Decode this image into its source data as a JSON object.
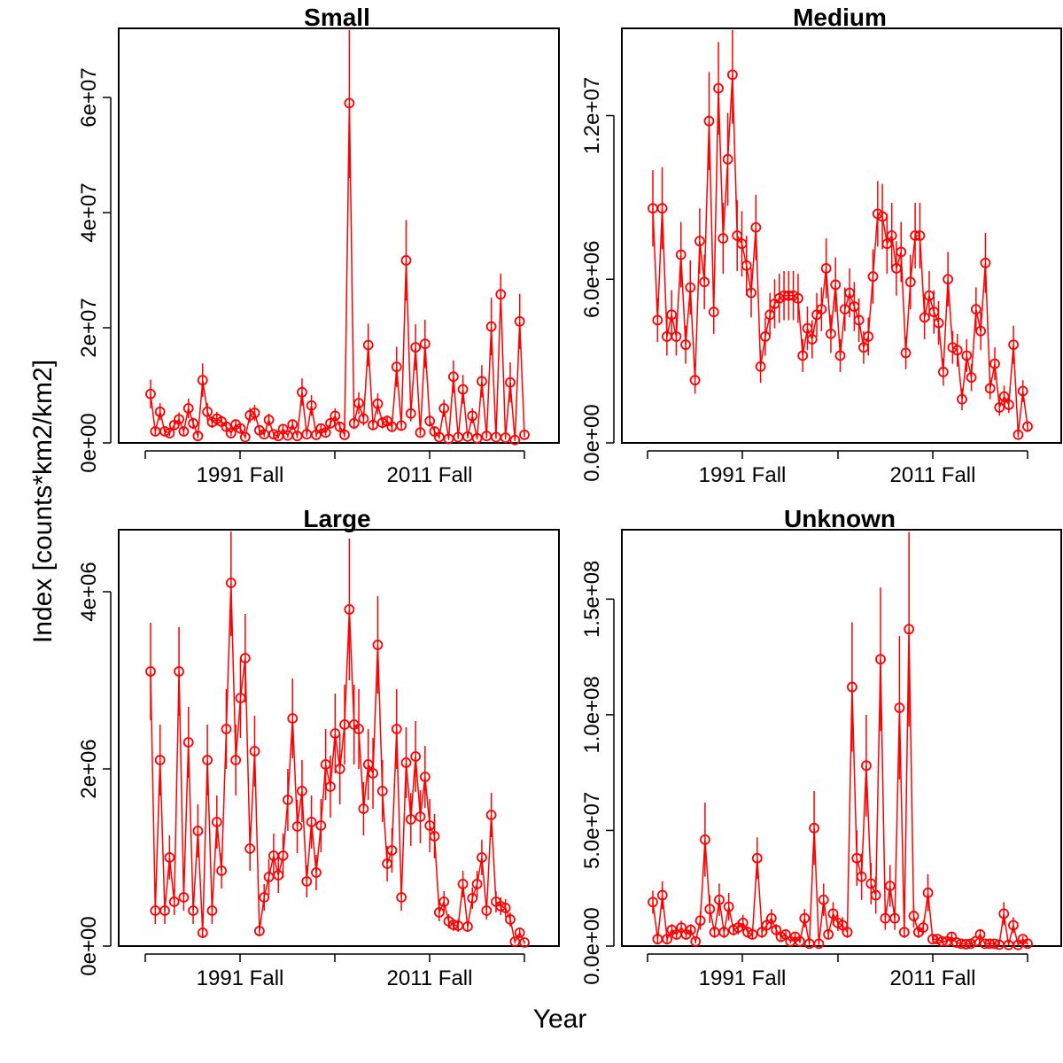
{
  "figure": {
    "ylabel": "Index [counts*km2/km2]",
    "xlabel": "Year",
    "series_color": "#ff0000",
    "axis_color": "#000000"
  },
  "chart_data": [
    {
      "type": "scatter",
      "title": "Small",
      "x_ticks": [
        "1991 Fall",
        "2011 Fall"
      ],
      "y_ticks": [
        "0e+00",
        "2e+07",
        "4e+07",
        "6e+07"
      ],
      "y_tick_values": [
        0,
        20000000,
        40000000,
        60000000
      ],
      "ylim": [
        0,
        72000000
      ],
      "values": [
        8500000,
        2000000,
        5400000,
        2000000,
        1700000,
        3100000,
        4100000,
        2000000,
        6000000,
        3400000,
        1200000,
        10900000,
        5400000,
        3600000,
        4200000,
        3700000,
        2800000,
        1700000,
        3200000,
        2500000,
        1000000,
        4800000,
        5200000,
        2200000,
        1500000,
        4000000,
        1500000,
        1200000,
        2400000,
        1300000,
        3200000,
        1200000,
        8800000,
        1500000,
        6500000,
        1400000,
        2500000,
        1800000,
        3400000,
        4700000,
        2800000,
        1400000,
        59000000,
        3400000,
        6900000,
        4200000,
        17000000,
        3100000,
        6800000,
        3500000,
        3800000,
        2800000,
        13200000,
        3000000,
        31700000,
        5100000,
        16600000,
        1800000,
        17200000,
        3800000,
        2000000,
        1000000,
        6000000,
        700000,
        11500000,
        1000000,
        9300000,
        1100000,
        4700000,
        800000,
        10700000,
        1200000,
        20200000,
        1000000,
        25800000,
        900000,
        10500000,
        500000,
        21100000,
        1400000
      ],
      "errors": [
        2500000,
        600000,
        1500000,
        600000,
        500000,
        900000,
        1200000,
        600000,
        1700000,
        1000000,
        400000,
        2900000,
        1500000,
        1000000,
        1200000,
        1000000,
        800000,
        500000,
        900000,
        700000,
        300000,
        1300000,
        1400000,
        600000,
        400000,
        1100000,
        400000,
        400000,
        700000,
        400000,
        900000,
        400000,
        2400000,
        400000,
        1800000,
        400000,
        700000,
        500000,
        900000,
        1300000,
        800000,
        400000,
        13000000,
        1000000,
        1900000,
        1200000,
        3700000,
        900000,
        1800000,
        1000000,
        1000000,
        800000,
        3500000,
        900000,
        7000000,
        1400000,
        4000000,
        500000,
        4200000,
        1000000,
        600000,
        300000,
        1500000,
        200000,
        2800000,
        300000,
        2500000,
        300000,
        1300000,
        200000,
        2800000,
        400000,
        5000000,
        300000,
        3600000,
        300000,
        3500000,
        200000,
        4800000,
        400000
      ]
    },
    {
      "type": "scatter",
      "title": "Medium",
      "x_ticks": [
        "1991 Fall",
        "2011 Fall"
      ],
      "y_ticks": [
        "0.0e+00",
        "6.0e+06",
        "1.2e+07"
      ],
      "y_tick_values": [
        0,
        6000000,
        12000000
      ],
      "ylim": [
        0,
        15200000
      ],
      "values": [
        8600000,
        4500000,
        8600000,
        3900000,
        4700000,
        3900000,
        6900000,
        3600000,
        5700000,
        2300000,
        7400000,
        5900000,
        11800000,
        4800000,
        13000000,
        7500000,
        10400000,
        13500000,
        7600000,
        7300000,
        6500000,
        5500000,
        7900000,
        2800000,
        3900000,
        4700000,
        5100000,
        5300000,
        5400000,
        5400000,
        5400000,
        5300000,
        3200000,
        4200000,
        3800000,
        4700000,
        4900000,
        6400000,
        4000000,
        5800000,
        3200000,
        4900000,
        5500000,
        5000000,
        4500000,
        3500000,
        3900000,
        6100000,
        8400000,
        8300000,
        7300000,
        7600000,
        6400000,
        7000000,
        3300000,
        5900000,
        7600000,
        7600000,
        4600000,
        5400000,
        4800000,
        4400000,
        2600000,
        6000000,
        3500000,
        3400000,
        1600000,
        3200000,
        2400000,
        4900000,
        4100000,
        6600000,
        2000000,
        2900000,
        1300000,
        1700000,
        1400000,
        3600000,
        300000,
        1900000,
        600000
      ],
      "errors": [
        1400000,
        800000,
        1500000,
        700000,
        900000,
        700000,
        1200000,
        700000,
        1000000,
        500000,
        1200000,
        1000000,
        1800000,
        800000,
        1700000,
        1300000,
        1700000,
        1800000,
        1300000,
        1200000,
        1100000,
        900000,
        1200000,
        600000,
        700000,
        800000,
        900000,
        900000,
        900000,
        900000,
        900000,
        900000,
        600000,
        800000,
        700000,
        800000,
        800000,
        1100000,
        700000,
        1000000,
        600000,
        800000,
        900000,
        900000,
        800000,
        600000,
        700000,
        1000000,
        1200000,
        1200000,
        1100000,
        1200000,
        1000000,
        1100000,
        600000,
        1000000,
        1200000,
        1200000,
        800000,
        900000,
        800000,
        800000,
        500000,
        1000000,
        600000,
        600000,
        400000,
        600000,
        500000,
        800000,
        700000,
        1100000,
        400000,
        600000,
        300000,
        400000,
        300000,
        700000,
        100000,
        400000,
        200000
      ]
    },
    {
      "type": "scatter",
      "title": "Large",
      "x_ticks": [
        "1991 Fall",
        "2011 Fall"
      ],
      "y_ticks": [
        "0e+00",
        "2e+06",
        "4e+06"
      ],
      "y_tick_values": [
        0,
        2000000,
        4000000
      ],
      "ylim": [
        0,
        4700000
      ],
      "values": [
        3100000,
        400000,
        2100000,
        400000,
        1000000,
        500000,
        3100000,
        550000,
        2300000,
        400000,
        1300000,
        150000,
        2100000,
        400000,
        1400000,
        850000,
        2450000,
        4100000,
        2100000,
        2800000,
        3250000,
        1100000,
        2200000,
        170000,
        550000,
        780000,
        1020000,
        800000,
        1020000,
        1650000,
        2570000,
        1350000,
        1750000,
        730000,
        1400000,
        830000,
        1360000,
        2050000,
        1800000,
        2400000,
        2000000,
        2500000,
        3800000,
        2500000,
        2450000,
        1550000,
        2050000,
        1950000,
        3400000,
        1750000,
        930000,
        1080000,
        2450000,
        550000,
        2070000,
        1430000,
        2140000,
        1460000,
        1910000,
        1360000,
        1240000,
        380000,
        500000,
        280000,
        240000,
        230000,
        700000,
        220000,
        540000,
        700000,
        1000000,
        400000,
        1480000,
        500000,
        450000,
        430000,
        300000,
        50000,
        150000,
        40000
      ],
      "errors": [
        550000,
        150000,
        400000,
        150000,
        250000,
        150000,
        500000,
        150000,
        400000,
        150000,
        300000,
        60000,
        400000,
        150000,
        300000,
        200000,
        450000,
        600000,
        400000,
        450000,
        500000,
        250000,
        400000,
        60000,
        150000,
        200000,
        250000,
        200000,
        250000,
        350000,
        450000,
        300000,
        350000,
        180000,
        300000,
        200000,
        300000,
        400000,
        350000,
        450000,
        400000,
        450000,
        800000,
        450000,
        450000,
        300000,
        400000,
        400000,
        550000,
        350000,
        200000,
        250000,
        450000,
        150000,
        400000,
        300000,
        400000,
        300000,
        350000,
        300000,
        250000,
        100000,
        120000,
        80000,
        70000,
        70000,
        150000,
        60000,
        120000,
        150000,
        200000,
        100000,
        250000,
        120000,
        100000,
        100000,
        80000,
        20000,
        40000,
        15000
      ]
    },
    {
      "type": "scatter",
      "title": "Unknown",
      "x_ticks": [
        "1991 Fall",
        "2011 Fall"
      ],
      "y_ticks": [
        "0.0e+00",
        "5.0e+07",
        "1.0e+08",
        "1.5e+08"
      ],
      "y_tick_values": [
        0,
        50000000,
        100000000,
        150000000
      ],
      "ylim": [
        0,
        180000000
      ],
      "values": [
        19000000,
        3000000,
        22000000,
        3000000,
        7000000,
        5000000,
        8000000,
        5000000,
        7000000,
        2000000,
        11000000,
        46000000,
        16000000,
        6000000,
        20000000,
        6000000,
        17000000,
        7000000,
        8000000,
        10000000,
        6000000,
        5000000,
        38000000,
        6000000,
        9000000,
        12000000,
        7000000,
        4000000,
        5000000,
        2000000,
        4000000,
        2000000,
        12000000,
        1000000,
        51000000,
        1000000,
        20000000,
        5000000,
        14000000,
        10000000,
        9000000,
        6000000,
        112000000,
        38000000,
        30000000,
        78000000,
        27000000,
        22000000,
        124000000,
        12000000,
        26000000,
        12000000,
        103000000,
        6000000,
        137000000,
        13000000,
        6000000,
        8000000,
        23000000,
        3000000,
        3000000,
        2000000,
        2000000,
        4000000,
        1500000,
        1000000,
        800000,
        1000000,
        2000000,
        5000000,
        1000000,
        1000000,
        1000000,
        600000,
        14000000,
        500000,
        9000000,
        500000,
        3000000,
        1000000
      ],
      "errors": [
        5000000,
        1500000,
        6000000,
        1500000,
        2500000,
        2000000,
        3000000,
        2000000,
        2500000,
        800000,
        4000000,
        16000000,
        6000000,
        2500000,
        7000000,
        2500000,
        6000000,
        2500000,
        3000000,
        3500000,
        2500000,
        2000000,
        9000000,
        2500000,
        3500000,
        4000000,
        2500000,
        1500000,
        2000000,
        800000,
        1500000,
        800000,
        4000000,
        500000,
        16000000,
        500000,
        7000000,
        2000000,
        5000000,
        3500000,
        3500000,
        2500000,
        28000000,
        12000000,
        10000000,
        22000000,
        9000000,
        8000000,
        31000000,
        5000000,
        9000000,
        5000000,
        31000000,
        2500000,
        42000000,
        5000000,
        2500000,
        3000000,
        8000000,
        1200000,
        1200000,
        800000,
        800000,
        1500000,
        600000,
        400000,
        300000,
        400000,
        800000,
        2000000,
        400000,
        400000,
        400000,
        250000,
        5000000,
        200000,
        3500000,
        200000,
        1200000,
        400000
      ]
    }
  ]
}
